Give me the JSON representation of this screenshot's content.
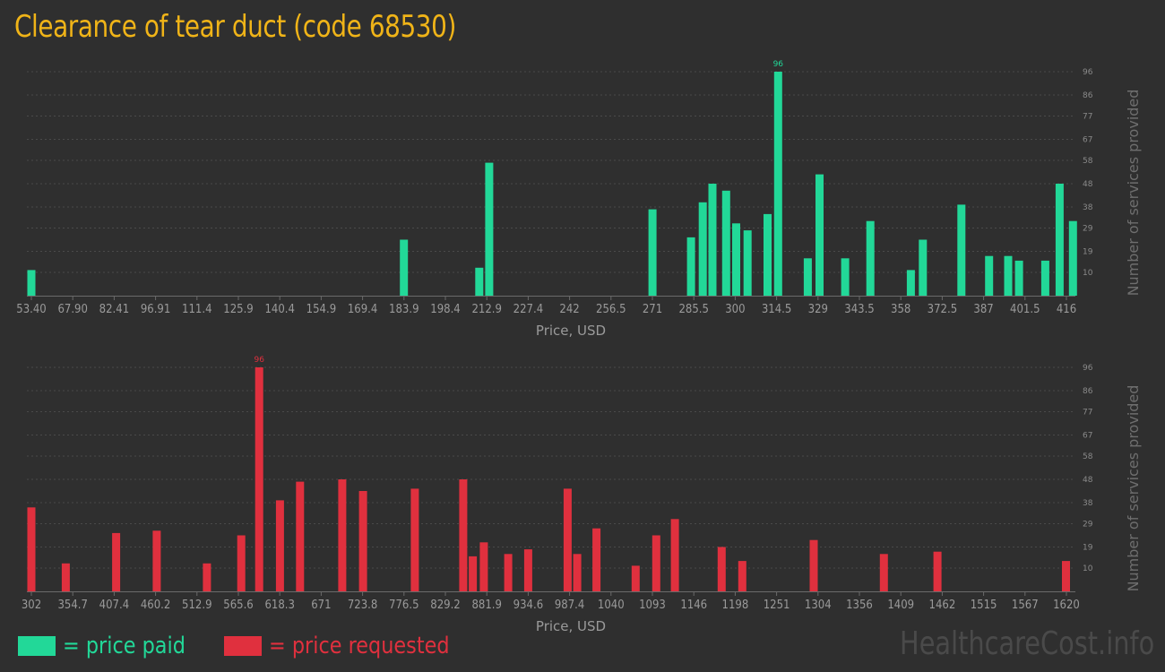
{
  "page": {
    "title": "Clearance of tear duct (code 68530)",
    "watermark": "HealthcareCost.info"
  },
  "legend": [
    {
      "label": "= price paid",
      "color": "#22d898"
    },
    {
      "label": "= price requested",
      "color": "#e0303e"
    }
  ],
  "chart_data": [
    {
      "type": "bar",
      "color": "#22d898",
      "xlabel": "Price, USD",
      "ylabel": "Number of services provided",
      "xlim": [
        53.4,
        416
      ],
      "ylim": [
        0,
        96
      ],
      "yticks": [
        10,
        19,
        29,
        38,
        48,
        58,
        67,
        77,
        86,
        96
      ],
      "xticks": [
        "53.40",
        "67.90",
        "82.41",
        "96.91",
        "111.4",
        "125.9",
        "140.4",
        "154.9",
        "169.4",
        "183.9",
        "198.4",
        "212.9",
        "227.4",
        "242",
        "256.5",
        "271",
        "285.5",
        "300",
        "314.5",
        "329",
        "343.5",
        "358",
        "372.5",
        "387",
        "401.5",
        "416"
      ],
      "peak_label": "96",
      "x": [
        53.4,
        183.9,
        210.3,
        213.8,
        271,
        284.5,
        288.6,
        292,
        296.8,
        300.3,
        304.3,
        311.3,
        315,
        325.4,
        329.5,
        338.5,
        347.3,
        361.5,
        365.7,
        379.2,
        388.9,
        395.6,
        399.4,
        408.6,
        413.6,
        418.3
      ],
      "values": [
        11,
        24,
        12,
        57,
        37,
        25,
        40,
        48,
        45,
        31,
        28,
        35,
        96,
        16,
        52,
        16,
        32,
        11,
        24,
        39,
        17,
        17,
        15,
        15,
        48,
        32
      ]
    },
    {
      "type": "bar",
      "color": "#e0303e",
      "xlabel": "Price, USD",
      "ylabel": "Number of services provided",
      "xlim": [
        302,
        1620
      ],
      "ylim": [
        0,
        96
      ],
      "yticks": [
        10,
        19,
        29,
        38,
        48,
        58,
        67,
        77,
        86,
        96
      ],
      "xticks": [
        "302",
        "354.7",
        "407.4",
        "460.2",
        "512.9",
        "565.6",
        "618.3",
        "671",
        "723.8",
        "776.5",
        "829.2",
        "881.9",
        "934.6",
        "987.4",
        "1040",
        "1093",
        "1146",
        "1198",
        "1251",
        "1304",
        "1356",
        "1409",
        "1462",
        "1515",
        "1567",
        "1620"
      ],
      "peak_label": "96",
      "x": [
        302,
        345.8,
        409.9,
        461.6,
        525.5,
        569.3,
        592.1,
        618.6,
        644.1,
        697.9,
        724.3,
        790.3,
        851.9,
        864.1,
        878.1,
        909.2,
        934.6,
        984.9,
        997.1,
        1021.6,
        1071.5,
        1097.7,
        1121.4,
        1181,
        1207.2,
        1298.2,
        1387.5,
        1455.8,
        1619.4
      ],
      "values": [
        36,
        12,
        25,
        26,
        12,
        24,
        96,
        39,
        47,
        48,
        43,
        44,
        48,
        15,
        21,
        16,
        18,
        44,
        16,
        27,
        11,
        24,
        31,
        19,
        13,
        22,
        16,
        17,
        13
      ]
    }
  ]
}
